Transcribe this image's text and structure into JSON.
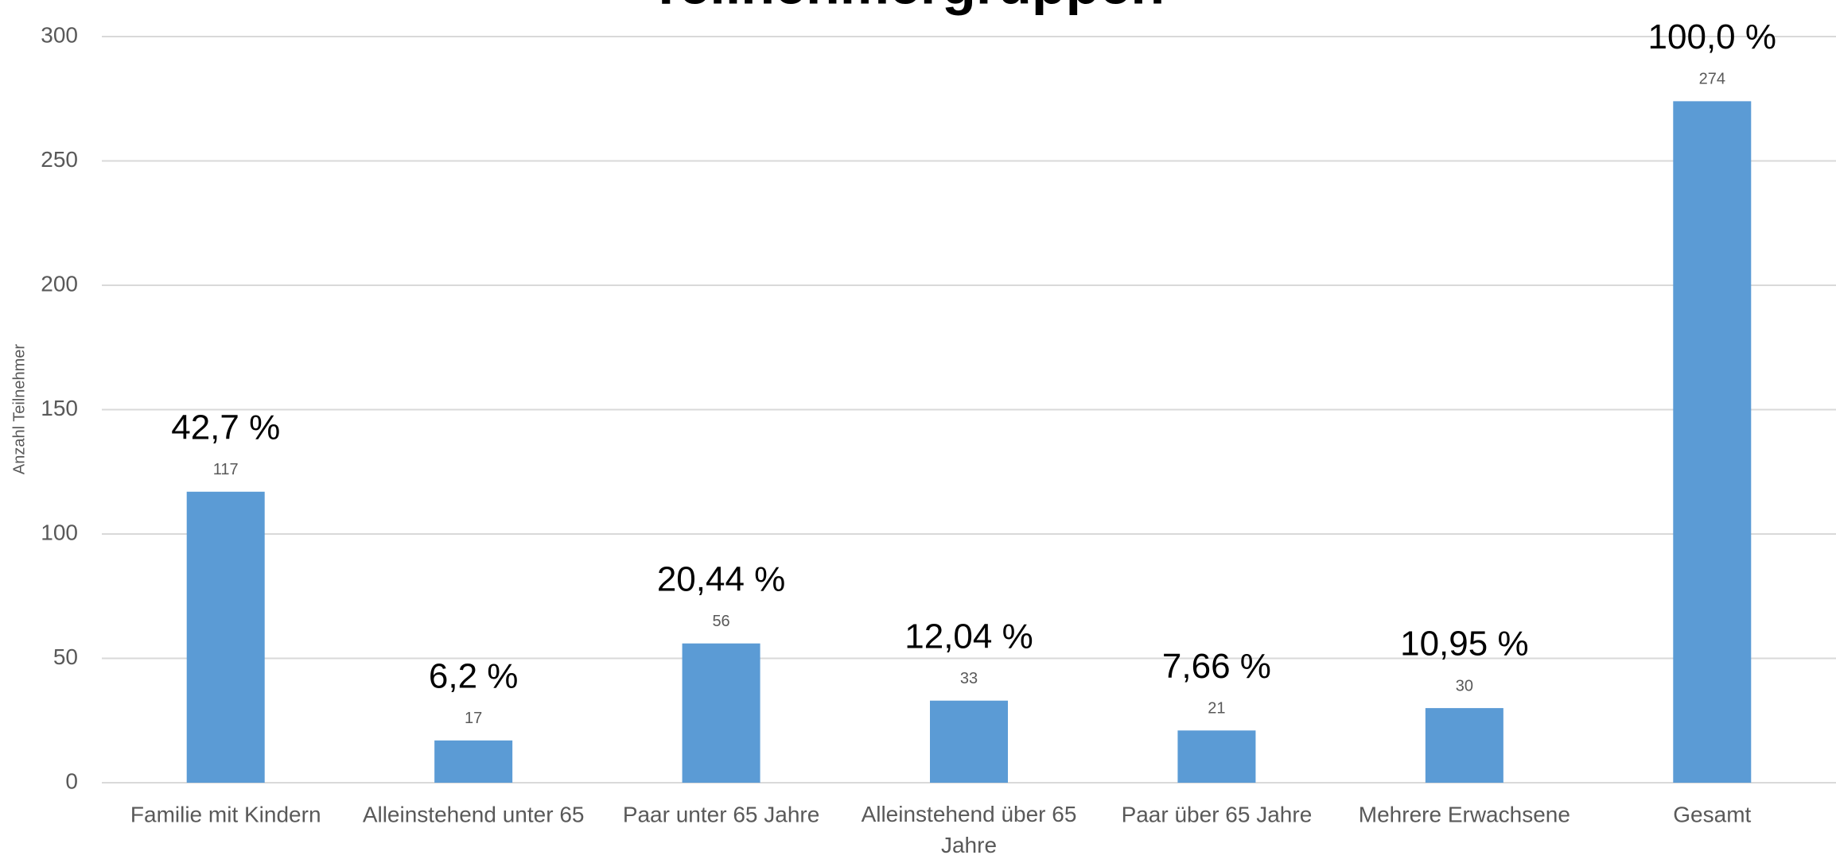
{
  "chart_data": {
    "type": "bar",
    "title": "Teilnehmergruppen",
    "y_label": "Anzahl Teilnehmer",
    "categories": [
      "Familie mit Kindern",
      "Alleinstehend unter 65",
      "Paar unter 65 Jahre",
      "Alleinstehend über 65 Jahre",
      "Paar über 65 Jahre",
      "Mehrere Erwachsene",
      "Gesamt"
    ],
    "values": [
      117,
      17,
      56,
      33,
      21,
      30,
      274
    ],
    "percent_labels": [
      "42,7 %",
      "6,2 %",
      "20,44 %",
      "12,04 %",
      "7,66 %",
      "10,95 %",
      "100,0 %"
    ],
    "color": "#5b9bd5",
    "ylim": [
      0,
      300
    ],
    "yticks": [
      0,
      50,
      100,
      150,
      200,
      250,
      300
    ],
    "grid": true
  }
}
